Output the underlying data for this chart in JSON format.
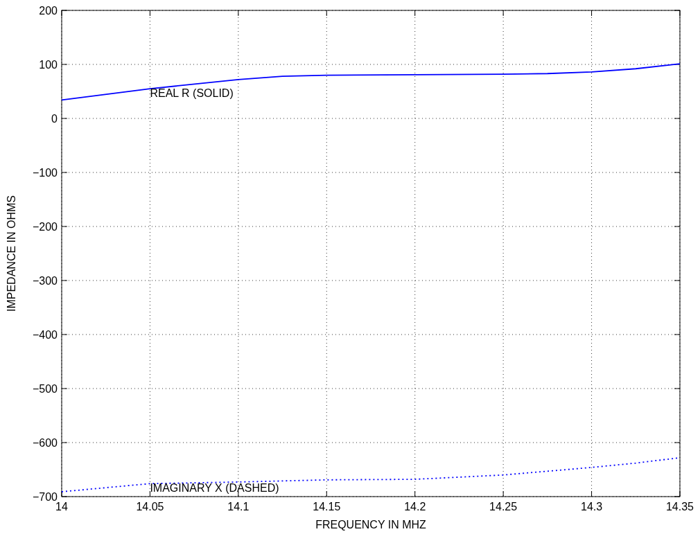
{
  "chart_data": {
    "type": "line",
    "xlabel": "FREQUENCY IN MHZ",
    "ylabel": "IMPEDANCE IN OHMS",
    "x": [
      14.0,
      14.05,
      14.1,
      14.125,
      14.15,
      14.2,
      14.25,
      14.275,
      14.3,
      14.325,
      14.35
    ],
    "series": [
      {
        "color": "#0000ff",
        "line_style": "solid",
        "values": [
          34,
          55,
          72,
          78,
          80,
          81,
          82,
          83,
          86,
          92,
          101
        ]
      },
      {
        "color": "#0000ff",
        "line_style": "dotted",
        "values": [
          -691,
          -676,
          -673,
          -671,
          -669,
          -668,
          -660,
          -653,
          -646,
          -638,
          -628
        ]
      }
    ],
    "xlim": [
      14,
      14.35
    ],
    "xticks": [
      14,
      14.05,
      14.1,
      14.15,
      14.2,
      14.25,
      14.3,
      14.35
    ],
    "ylim": [
      -700,
      200
    ],
    "yticks": [
      -700,
      -600,
      -500,
      -400,
      -300,
      -200,
      -100,
      0,
      100,
      200
    ],
    "grid": true,
    "annotations": [
      {
        "text": "REAL R (SOLID)",
        "x": 14.05,
        "y": 55
      },
      {
        "text": "IMAGINARY X (DASHED)",
        "x": 14.05,
        "y": -676
      }
    ]
  }
}
